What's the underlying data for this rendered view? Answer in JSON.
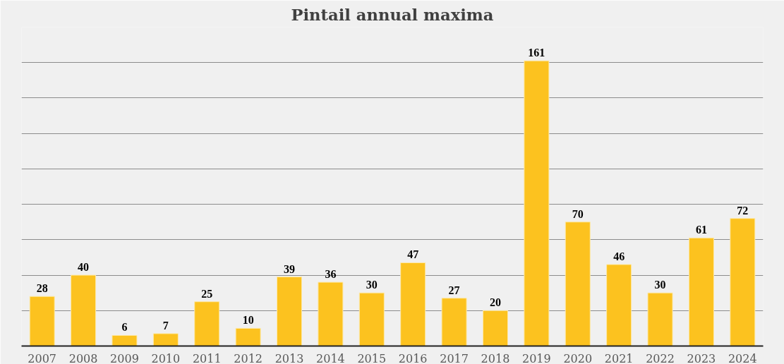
{
  "chart_data": {
    "type": "bar",
    "title": "Pintail annual maxima",
    "categories": [
      "2007",
      "2008",
      "2009",
      "2010",
      "2011",
      "2012",
      "2013",
      "2014",
      "2015",
      "2016",
      "2017",
      "2018",
      "2019",
      "2020",
      "2021",
      "2022",
      "2023",
      "2024"
    ],
    "values": [
      28,
      40,
      6,
      7,
      25,
      10,
      39,
      36,
      30,
      47,
      27,
      20,
      161,
      70,
      46,
      30,
      61,
      72
    ],
    "color": "#fcc21f",
    "data_labels": true,
    "grid": "y",
    "tick_labels": "x",
    "ylim": [
      0,
      180
    ],
    "yticks": [
      {
        "value": 0,
        "label": null
      },
      {
        "value": 20,
        "label": null
      },
      {
        "value": 40,
        "label": null
      },
      {
        "value": 60,
        "label": null
      },
      {
        "value": 80,
        "label": null
      },
      {
        "value": 100,
        "label": null
      },
      {
        "value": 120,
        "label": null
      },
      {
        "value": 140,
        "label": null
      },
      {
        "value": 160,
        "label": null
      },
      {
        "value": 180,
        "label": null
      }
    ]
  }
}
